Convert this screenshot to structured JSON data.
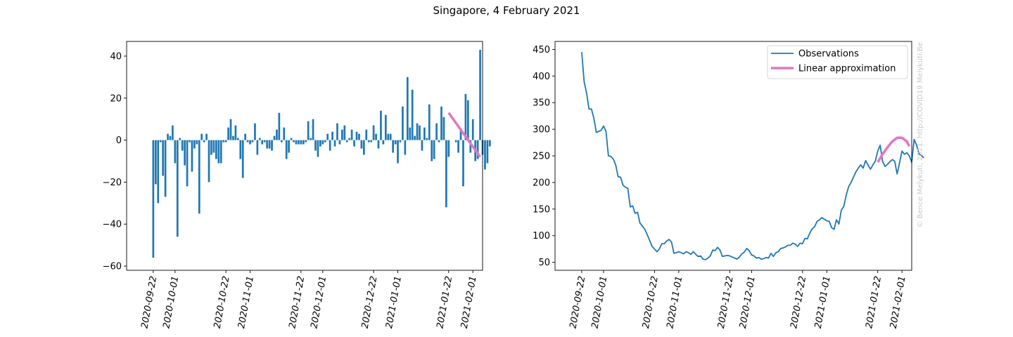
{
  "figure": {
    "title": "Singapore, 4 February 2021",
    "watermark": "© Bence Melykuti, 2021. http://COVID19.Melykuti.Be"
  },
  "colors": {
    "bars": "#1f77b4",
    "observations": "#1f77b4",
    "approximation": "#e377c2"
  },
  "date_ticks": [
    "2020-09-22",
    "2020-10-01",
    "2020-10-22",
    "2020-11-01",
    "2020-11-22",
    "2020-12-01",
    "2020-12-22",
    "2021-01-01",
    "2021-01-22",
    "2021-02-01"
  ],
  "chart_data": [
    {
      "type": "bar",
      "x_start": "2020-09-22",
      "ylim": [
        -62,
        47
      ],
      "yticks": [
        -60,
        -40,
        -20,
        0,
        20,
        40
      ],
      "xlim": [
        "2020-09-11",
        "2021-02-05"
      ],
      "values": [
        -56,
        -21,
        -30,
        -1,
        -17,
        -27,
        3,
        2,
        7,
        -11,
        -46,
        1,
        -5,
        -12,
        -22,
        -1,
        -15,
        -4,
        -2,
        -35,
        3,
        -1,
        3,
        -20,
        -7,
        -6,
        -9,
        -11,
        -11,
        -1,
        -1,
        6,
        10,
        2,
        7,
        1,
        -9,
        -18,
        3,
        -1,
        -2,
        -1,
        8,
        -7,
        1,
        -2,
        -1,
        -4,
        -4,
        -5,
        2,
        5,
        13,
        -1,
        6,
        -9,
        -6,
        1,
        -1,
        -2,
        -2,
        -2,
        -2,
        -1,
        9,
        1,
        10,
        -5,
        -8,
        -3,
        -2,
        -1,
        3,
        -5,
        4,
        -3,
        8,
        -2,
        5,
        7,
        -1,
        1,
        5,
        -3,
        4,
        3,
        -4,
        -7,
        5,
        -1,
        -1,
        7,
        3,
        -4,
        14,
        -2,
        12,
        3,
        3,
        -6,
        -2,
        -11,
        -1,
        16,
        -7,
        30,
        6,
        24,
        2,
        8,
        7,
        -5,
        6,
        1,
        17,
        -10,
        -9,
        8,
        -1,
        16,
        11,
        -32,
        -8,
        0,
        0,
        -1,
        -6,
        5,
        -22,
        22,
        19,
        -6,
        10,
        -10,
        -9,
        43,
        -7,
        -14,
        -11,
        -3
      ],
      "approximation": {
        "x": [
          "2021-01-22",
          "2021-02-04"
        ],
        "y": [
          13,
          -8
        ]
      }
    },
    {
      "type": "line",
      "x_start": "2020-09-22",
      "ylim": [
        35,
        465
      ],
      "yticks": [
        50,
        100,
        150,
        200,
        250,
        300,
        350,
        400,
        450
      ],
      "xlim": [
        "2020-09-11",
        "2021-02-05"
      ],
      "values": [
        445,
        389,
        368,
        338,
        338,
        321,
        294,
        296,
        298,
        306,
        296,
        250,
        249,
        244,
        233,
        211,
        210,
        195,
        191,
        189,
        154,
        156,
        142,
        144,
        124,
        118,
        112,
        102,
        91,
        80,
        75,
        70,
        75,
        85,
        85,
        90,
        93,
        88,
        67,
        68,
        70,
        68,
        66,
        70,
        68,
        65,
        70,
        65,
        61,
        62,
        56,
        55,
        58,
        62,
        73,
        72,
        78,
        73,
        61,
        62,
        63,
        62,
        60,
        58,
        56,
        60,
        66,
        69,
        76,
        72,
        64,
        62,
        58,
        59,
        56,
        57,
        59,
        58,
        67,
        61,
        68,
        70,
        76,
        77,
        79,
        82,
        82,
        86,
        84,
        80,
        86,
        85,
        95,
        94,
        105,
        113,
        117,
        127,
        130,
        134,
        131,
        128,
        127,
        115,
        112,
        130,
        122,
        148,
        155,
        176,
        192,
        200,
        210,
        220,
        227,
        233,
        227,
        241,
        233,
        225,
        233,
        240,
        259,
        270,
        240,
        230,
        234,
        239,
        243,
        240,
        216,
        237,
        259,
        253,
        256,
        250,
        238,
        281,
        270,
        254,
        251,
        246
      ],
      "legend": [
        "Observations",
        "Linear approximation"
      ],
      "legend_position": "top-right",
      "approximation": {
        "x": [
          "2021-01-22",
          "2021-01-24",
          "2021-01-26",
          "2021-01-28",
          "2021-01-30",
          "2021-02-01",
          "2021-02-03",
          "2021-02-04"
        ],
        "y": [
          238,
          253,
          266,
          277,
          284,
          284,
          277,
          268
        ]
      }
    }
  ]
}
